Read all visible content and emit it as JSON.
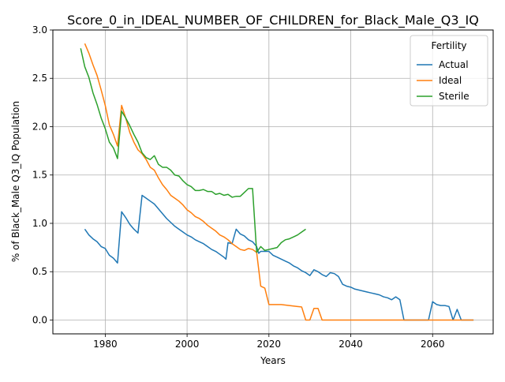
{
  "chart_data": {
    "type": "line",
    "title": "Score_0_in_IDEAL_NUMBER_OF_CHILDREN_for_Black_Male_Q3_IQ",
    "xlabel": "Years",
    "ylabel": "% of Black_Male Q3_IQ Population",
    "xlim": [
      1967.2,
      2074.8
    ],
    "ylim": [
      -0.143,
      3.0
    ],
    "xticks": [
      1980,
      2000,
      2020,
      2040,
      2060
    ],
    "yticks": [
      0.0,
      0.5,
      1.0,
      1.5,
      2.0,
      2.5,
      3.0
    ],
    "xtick_labels": [
      "1980",
      "2000",
      "2020",
      "2040",
      "2060"
    ],
    "ytick_labels": [
      "0.0",
      "0.5",
      "1.0",
      "1.5",
      "2.0",
      "2.5",
      "3.0"
    ],
    "grid": true,
    "legend": {
      "title": "Fertility",
      "placement": "top-right"
    },
    "series": [
      {
        "name": "Actual",
        "color": "#1f77b4",
        "points": [
          [
            1975,
            0.94
          ],
          [
            1976,
            0.88
          ],
          [
            1977,
            0.84
          ],
          [
            1978,
            0.81
          ],
          [
            1979,
            0.76
          ],
          [
            1980,
            0.74
          ],
          [
            1981,
            0.67
          ],
          [
            1982,
            0.64
          ],
          [
            1983,
            0.59
          ],
          [
            1984,
            1.12
          ],
          [
            1985,
            1.06
          ],
          [
            1986,
            0.99
          ],
          [
            1987,
            0.94
          ],
          [
            1988,
            0.9
          ],
          [
            1989,
            1.29
          ],
          [
            1990,
            1.26
          ],
          [
            1991,
            1.23
          ],
          [
            1992,
            1.2
          ],
          [
            1993,
            1.15
          ],
          [
            1994,
            1.1
          ],
          [
            1995,
            1.05
          ],
          [
            1996,
            1.01
          ],
          [
            1997,
            0.97
          ],
          [
            1998,
            0.94
          ],
          [
            1999,
            0.91
          ],
          [
            2000,
            0.88
          ],
          [
            2001,
            0.86
          ],
          [
            2002,
            0.83
          ],
          [
            2003,
            0.81
          ],
          [
            2004,
            0.79
          ],
          [
            2005,
            0.76
          ],
          [
            2006,
            0.73
          ],
          [
            2007,
            0.71
          ],
          [
            2008,
            0.68
          ],
          [
            2009,
            0.65
          ],
          [
            2009.5,
            0.63
          ],
          [
            2010,
            0.8
          ],
          [
            2011,
            0.79
          ],
          [
            2012,
            0.94
          ],
          [
            2013,
            0.89
          ],
          [
            2014,
            0.87
          ],
          [
            2015,
            0.83
          ],
          [
            2016,
            0.81
          ],
          [
            2017,
            0.76
          ],
          [
            2017.5,
            0.69
          ],
          [
            2018,
            0.71
          ],
          [
            2019,
            0.71
          ],
          [
            2020,
            0.71
          ],
          [
            2021,
            0.67
          ],
          [
            2022,
            0.65
          ],
          [
            2023,
            0.63
          ],
          [
            2024,
            0.61
          ],
          [
            2025,
            0.59
          ],
          [
            2026,
            0.56
          ],
          [
            2027,
            0.54
          ],
          [
            2028,
            0.51
          ],
          [
            2029,
            0.49
          ],
          [
            2030,
            0.46
          ],
          [
            2031,
            0.52
          ],
          [
            2032,
            0.5
          ],
          [
            2033,
            0.47
          ],
          [
            2034,
            0.45
          ],
          [
            2035,
            0.49
          ],
          [
            2036,
            0.48
          ],
          [
            2037,
            0.45
          ],
          [
            2038,
            0.37
          ],
          [
            2039,
            0.35
          ],
          [
            2040,
            0.34
          ],
          [
            2041,
            0.32
          ],
          [
            2042,
            0.31
          ],
          [
            2043,
            0.3
          ],
          [
            2044,
            0.29
          ],
          [
            2045,
            0.28
          ],
          [
            2046,
            0.27
          ],
          [
            2047,
            0.26
          ],
          [
            2048,
            0.24
          ],
          [
            2049,
            0.23
          ],
          [
            2050,
            0.21
          ],
          [
            2051,
            0.24
          ],
          [
            2052,
            0.21
          ],
          [
            2053,
            0.0
          ],
          [
            2059,
            0.0
          ],
          [
            2060,
            0.19
          ],
          [
            2061,
            0.16
          ],
          [
            2062,
            0.15
          ],
          [
            2063,
            0.15
          ],
          [
            2064,
            0.14
          ],
          [
            2065,
            0.0
          ],
          [
            2066,
            0.11
          ],
          [
            2067,
            0.0
          ],
          [
            2070,
            0.0
          ]
        ]
      },
      {
        "name": "Ideal",
        "color": "#ff7f0e",
        "points": [
          [
            1975,
            2.86
          ],
          [
            1976,
            2.76
          ],
          [
            1977,
            2.64
          ],
          [
            1978,
            2.53
          ],
          [
            1979,
            2.38
          ],
          [
            1980,
            2.22
          ],
          [
            1981,
            2.02
          ],
          [
            1982,
            1.92
          ],
          [
            1983,
            1.8
          ],
          [
            1984,
            2.22
          ],
          [
            1985,
            2.09
          ],
          [
            1986,
            1.94
          ],
          [
            1987,
            1.84
          ],
          [
            1988,
            1.76
          ],
          [
            1989,
            1.72
          ],
          [
            1990,
            1.66
          ],
          [
            1991,
            1.58
          ],
          [
            1992,
            1.55
          ],
          [
            1993,
            1.47
          ],
          [
            1994,
            1.4
          ],
          [
            1995,
            1.35
          ],
          [
            1996,
            1.29
          ],
          [
            1997,
            1.26
          ],
          [
            1998,
            1.23
          ],
          [
            1999,
            1.19
          ],
          [
            2000,
            1.14
          ],
          [
            2001,
            1.11
          ],
          [
            2002,
            1.07
          ],
          [
            2003,
            1.05
          ],
          [
            2004,
            1.02
          ],
          [
            2005,
            0.98
          ],
          [
            2006,
            0.95
          ],
          [
            2007,
            0.92
          ],
          [
            2008,
            0.88
          ],
          [
            2009,
            0.86
          ],
          [
            2010,
            0.83
          ],
          [
            2011,
            0.79
          ],
          [
            2012,
            0.76
          ],
          [
            2013,
            0.73
          ],
          [
            2014,
            0.72
          ],
          [
            2015,
            0.74
          ],
          [
            2016,
            0.73
          ],
          [
            2017,
            0.7
          ],
          [
            2018,
            0.35
          ],
          [
            2019,
            0.33
          ],
          [
            2020,
            0.16
          ],
          [
            2021,
            0.16
          ],
          [
            2022,
            0.16
          ],
          [
            2023,
            0.16
          ],
          [
            2024,
            0.155
          ],
          [
            2025,
            0.15
          ],
          [
            2026,
            0.145
          ],
          [
            2027,
            0.14
          ],
          [
            2028,
            0.135
          ],
          [
            2029,
            0.0
          ],
          [
            2030,
            0.0
          ],
          [
            2031,
            0.12
          ],
          [
            2032,
            0.12
          ],
          [
            2033,
            0.0
          ],
          [
            2070,
            0.0
          ]
        ]
      },
      {
        "name": "Sterile",
        "color": "#2ca02c",
        "points": [
          [
            1974,
            2.81
          ],
          [
            1975,
            2.62
          ],
          [
            1976,
            2.51
          ],
          [
            1977,
            2.35
          ],
          [
            1978,
            2.23
          ],
          [
            1979,
            2.09
          ],
          [
            1980,
            1.98
          ],
          [
            1981,
            1.84
          ],
          [
            1982,
            1.78
          ],
          [
            1983,
            1.67
          ],
          [
            1984,
            2.16
          ],
          [
            1985,
            2.09
          ],
          [
            1986,
            2.01
          ],
          [
            1987,
            1.92
          ],
          [
            1988,
            1.84
          ],
          [
            1989,
            1.73
          ],
          [
            1990,
            1.68
          ],
          [
            1991,
            1.66
          ],
          [
            1992,
            1.7
          ],
          [
            1993,
            1.61
          ],
          [
            1994,
            1.58
          ],
          [
            1995,
            1.58
          ],
          [
            1996,
            1.55
          ],
          [
            1997,
            1.5
          ],
          [
            1998,
            1.49
          ],
          [
            1999,
            1.44
          ],
          [
            2000,
            1.4
          ],
          [
            2001,
            1.38
          ],
          [
            2002,
            1.34
          ],
          [
            2003,
            1.34
          ],
          [
            2004,
            1.35
          ],
          [
            2005,
            1.33
          ],
          [
            2006,
            1.33
          ],
          [
            2007,
            1.3
          ],
          [
            2008,
            1.31
          ],
          [
            2009,
            1.29
          ],
          [
            2010,
            1.3
          ],
          [
            2011,
            1.27
          ],
          [
            2012,
            1.28
          ],
          [
            2013,
            1.28
          ],
          [
            2014,
            1.32
          ],
          [
            2015,
            1.36
          ],
          [
            2016,
            1.36
          ],
          [
            2017,
            0.7
          ],
          [
            2018,
            0.76
          ],
          [
            2019,
            0.72
          ],
          [
            2020,
            0.73
          ],
          [
            2021,
            0.74
          ],
          [
            2022,
            0.75
          ],
          [
            2023,
            0.8
          ],
          [
            2024,
            0.83
          ],
          [
            2025,
            0.84
          ],
          [
            2026,
            0.86
          ],
          [
            2027,
            0.88
          ],
          [
            2028,
            0.91
          ],
          [
            2029,
            0.94
          ]
        ]
      }
    ]
  }
}
